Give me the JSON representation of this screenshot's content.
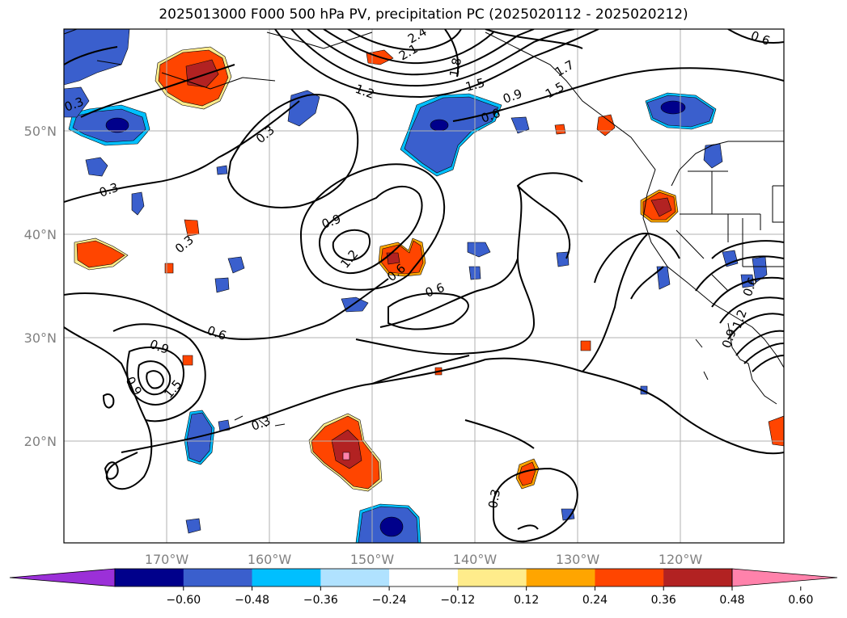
{
  "title": "2025013000 F000 500 hPa PV, precipitation PC (2025020112 - 2025020212)",
  "map": {
    "lon_labels": [
      "170°W",
      "160°W",
      "150°W",
      "140°W",
      "130°W",
      "120°W"
    ],
    "lat_labels": [
      "50°N",
      "40°N",
      "30°N",
      "20°N"
    ],
    "pv_contour_labels": [
      "0.3",
      "0.3",
      "0.3",
      "0.3",
      "0.3",
      "0.3",
      "0.6",
      "0.6",
      "0.6",
      "0.6",
      "0.6",
      "0.6",
      "0.9",
      "0.9",
      "0.9",
      "0.9",
      "0.9",
      "1.2",
      "1.2",
      "1.2",
      "1.5",
      "1.5",
      "1.8",
      "2.1",
      "2.4",
      "1.7",
      "1.5"
    ],
    "grid": true
  },
  "colorbar": {
    "colors": [
      "#9b30d8",
      "#00008b",
      "#3a5fcd",
      "#00bfff",
      "#b0e2ff",
      "#ffffff",
      "#ffec8b",
      "#ffa500",
      "#ff4500",
      "#b22222",
      "#ff82ab"
    ],
    "ticks": [
      "−0.60",
      "−0.48",
      "−0.36",
      "−0.24",
      "−0.12",
      "0.12",
      "0.24",
      "0.36",
      "0.48",
      "0.60"
    ],
    "extend": "both"
  },
  "colors": {
    "neg_strong": "#00008b",
    "neg_mid": "#3a5fcd",
    "neg_weak": "#00bfff",
    "neg_faint": "#b0e2ff",
    "pos_faint": "#ffec8b",
    "pos_weak": "#ffa500",
    "pos_mid": "#ff4500",
    "pos_strong": "#b22222",
    "pos_max": "#ff82ab"
  }
}
